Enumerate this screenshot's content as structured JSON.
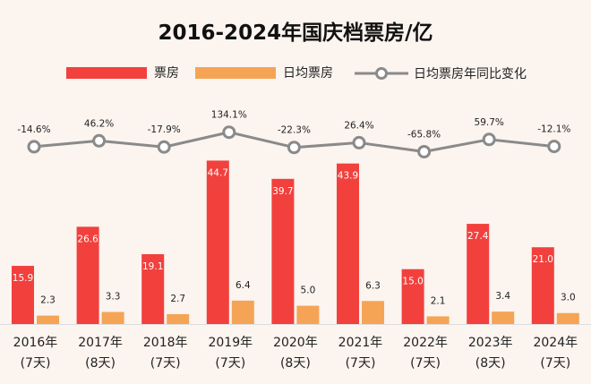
{
  "chart_data": {
    "type": "bar",
    "title": "2016-2024年国庆档票房/亿",
    "categories": [
      "2016年",
      "2017年",
      "2018年",
      "2019年",
      "2020年",
      "2021年",
      "2022年",
      "2023年",
      "2024年"
    ],
    "sub_labels": [
      "(7天)",
      "(8天)",
      "(7天)",
      "(7天)",
      "(8天)",
      "(7天)",
      "(7天)",
      "(8天)",
      "(7天)"
    ],
    "series": [
      {
        "name": "票房",
        "type": "bar",
        "values": [
          15.9,
          26.6,
          19.1,
          44.7,
          39.7,
          43.9,
          15.0,
          27.4,
          21.0
        ],
        "value_labels": [
          "15.9",
          "26.6",
          "19.1",
          "44.7",
          "39.7",
          "43.9",
          "15.0",
          "27.4",
          "21.0"
        ]
      },
      {
        "name": "日均票房",
        "type": "bar",
        "values": [
          2.3,
          3.3,
          2.7,
          6.4,
          5.0,
          6.3,
          2.1,
          3.4,
          3.0
        ],
        "value_labels": [
          "2.3",
          "3.3",
          "2.7",
          "6.4",
          "5.0",
          "6.3",
          "2.1",
          "3.4",
          "3.0"
        ]
      },
      {
        "name": "日均票房年同比变化",
        "type": "line",
        "values": [
          -14.6,
          46.2,
          -17.9,
          134.1,
          -22.3,
          26.4,
          -65.8,
          59.7,
          -12.1
        ],
        "value_labels": [
          "-14.6%",
          "46.2%",
          "-17.9%",
          "134.1%",
          "-22.3%",
          "26.4%",
          "-65.8%",
          "59.7%",
          "-12.1%"
        ]
      }
    ],
    "colors": {
      "box_office": "#f2403d",
      "daily": "#f5a455",
      "line": "#8a8a8a",
      "background": "#fbf4ef"
    },
    "legend": "top",
    "grid": false
  }
}
